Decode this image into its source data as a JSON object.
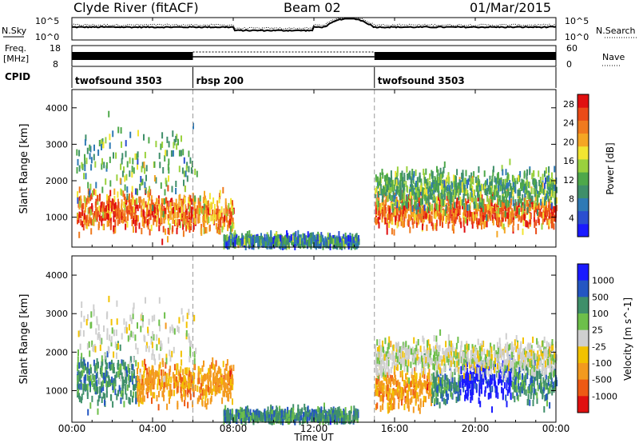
{
  "header": {
    "title": "Clyde River (fitACF)",
    "beam": "Beam 02",
    "date": "01/Mar/2015"
  },
  "top_panels": {
    "nsky_label": "N.Sky",
    "nsearch_label": "N.Search",
    "nsky_ticks": [
      "10^5",
      "10^0"
    ],
    "freq_label": [
      "Freq.",
      "[MHz]"
    ],
    "freq_ticks": [
      "18",
      "8"
    ],
    "nave_label": "Nave",
    "nave_ticks": [
      "60",
      "0"
    ],
    "cpid_label": "CPID",
    "cpid_segments": [
      {
        "label": "twofsound 3503",
        "start_hour": 0,
        "end_hour": 6
      },
      {
        "label": "rbsp 200",
        "start_hour": 6,
        "end_hour": 15
      },
      {
        "label": "twofsound 3503",
        "start_hour": 15,
        "end_hour": 24
      }
    ]
  },
  "chart_data": [
    {
      "type": "heatmap",
      "name": "power",
      "title": "",
      "xlabel": "Time UT",
      "ylabel": "Slant Range [km]",
      "x_ticks": [
        "00:00",
        "04:00",
        "08:00",
        "12:00",
        "16:00",
        "20:00",
        "00:00"
      ],
      "xlim_hours": [
        0,
        24
      ],
      "y_ticks": [
        1000,
        2000,
        3000,
        4000
      ],
      "ylim_km": [
        180,
        4500
      ],
      "colorbar": {
        "label": "Power [dB]",
        "ticks": [
          "4",
          "8",
          "12",
          "16",
          "20",
          "24",
          "28"
        ],
        "range": [
          0,
          30
        ],
        "colors": [
          "#1a1aff",
          "#2b4fd0",
          "#2f7ab5",
          "#3f8f6a",
          "#4ea84a",
          "#9ad13e",
          "#f2e531",
          "#f5a623",
          "#f07a1e",
          "#ea4b18",
          "#e01010"
        ]
      },
      "mode_boundaries_hours": [
        6,
        15
      ],
      "scatter_regions": [
        {
          "t": [
            0.2,
            6.0
          ],
          "r_mean": 1150,
          "r_sd": 260,
          "value_mean": 24,
          "value_sd": 4
        },
        {
          "t": [
            6.0,
            8.0
          ],
          "r_mean": 1100,
          "r_sd": 230,
          "value_mean": 22,
          "value_sd": 4
        },
        {
          "t": [
            0.2,
            6.2
          ],
          "r_mean": 2400,
          "r_sd": 500,
          "value_mean": 12,
          "value_sd": 4
        },
        {
          "t": [
            7.5,
            14.2
          ],
          "r_mean": 330,
          "r_sd": 90,
          "value_mean": 9,
          "value_sd": 4
        },
        {
          "t": [
            15.0,
            24.0
          ],
          "r_mean": 1150,
          "r_sd": 220,
          "value_mean": 24,
          "value_sd": 4
        },
        {
          "t": [
            15.0,
            24.0
          ],
          "r_mean": 1750,
          "r_sd": 250,
          "value_mean": 12,
          "value_sd": 3
        }
      ]
    },
    {
      "type": "heatmap",
      "name": "velocity",
      "title": "",
      "xlabel": "Time UT",
      "ylabel": "Slant Range [km]",
      "x_ticks": [
        "00:00",
        "04:00",
        "08:00",
        "12:00",
        "16:00",
        "20:00",
        "00:00"
      ],
      "xlim_hours": [
        0,
        24
      ],
      "y_ticks": [
        1000,
        2000,
        3000,
        4000
      ],
      "ylim_km": [
        180,
        4500
      ],
      "colorbar": {
        "label": "Velocity [m s^-1]",
        "ticks": [
          "1000",
          "500",
          "100",
          "25",
          "-25",
          "-100",
          "-500",
          "-1000"
        ],
        "colors": [
          "#1a1aff",
          "#2456c2",
          "#3f8f6a",
          "#6dbf4a",
          "#cfcfcf",
          "#f2c200",
          "#f39a1e",
          "#ee5a14",
          "#e01010"
        ]
      },
      "mode_boundaries_hours": [
        6,
        15
      ],
      "scatter_regions": [
        {
          "t": [
            0.2,
            3.2
          ],
          "r_mean": 1300,
          "r_sd": 320,
          "velocity_class": 100
        },
        {
          "t": [
            3.2,
            8.0
          ],
          "r_mean": 1200,
          "r_sd": 250,
          "velocity_class": -500
        },
        {
          "t": [
            0.2,
            6.2
          ],
          "r_mean": 2400,
          "r_sd": 500,
          "velocity_class": 25
        },
        {
          "t": [
            7.5,
            14.2
          ],
          "r_mean": 330,
          "r_sd": 90,
          "velocity_class": 100
        },
        {
          "t": [
            15.0,
            17.8
          ],
          "r_mean": 1000,
          "r_sd": 220,
          "velocity_class": -500
        },
        {
          "t": [
            17.8,
            19.2
          ],
          "r_mean": 1100,
          "r_sd": 220,
          "velocity_class": 100
        },
        {
          "t": [
            19.2,
            21.8
          ],
          "r_mean": 1300,
          "r_sd": 260,
          "velocity_class": 1000
        },
        {
          "t": [
            21.8,
            24.0
          ],
          "r_mean": 1200,
          "r_sd": 260,
          "velocity_class": 100
        },
        {
          "t": [
            15.0,
            24.0
          ],
          "r_mean": 1850,
          "r_sd": 220,
          "velocity_class": 25
        }
      ]
    }
  ]
}
